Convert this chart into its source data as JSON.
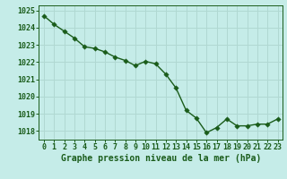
{
  "x": [
    0,
    1,
    2,
    3,
    4,
    5,
    6,
    7,
    8,
    9,
    10,
    11,
    12,
    13,
    14,
    15,
    16,
    17,
    18,
    19,
    20,
    21,
    22,
    23
  ],
  "y": [
    1024.7,
    1024.2,
    1023.8,
    1023.4,
    1022.9,
    1022.8,
    1022.6,
    1022.3,
    1022.1,
    1021.8,
    1022.05,
    1021.9,
    1021.3,
    1020.5,
    1019.2,
    1018.75,
    1017.9,
    1018.2,
    1018.7,
    1018.3,
    1018.3,
    1018.4,
    1018.4,
    1018.7
  ],
  "line_color": "#1a5c1a",
  "marker_color": "#1a5c1a",
  "bg_color": "#c5ece8",
  "grid_color": "#b0d8d2",
  "label_color": "#1a5c1a",
  "xlabel": "Graphe pression niveau de la mer (hPa)",
  "ylim_min": 1017.5,
  "ylim_max": 1025.3,
  "yticks": [
    1018,
    1019,
    1020,
    1021,
    1022,
    1023,
    1024,
    1025
  ],
  "xticks": [
    0,
    1,
    2,
    3,
    4,
    5,
    6,
    7,
    8,
    9,
    10,
    11,
    12,
    13,
    14,
    15,
    16,
    17,
    18,
    19,
    20,
    21,
    22,
    23
  ],
  "tick_fontsize": 6.0,
  "xlabel_fontsize": 7.0,
  "marker_size": 2.8,
  "line_width": 1.0
}
